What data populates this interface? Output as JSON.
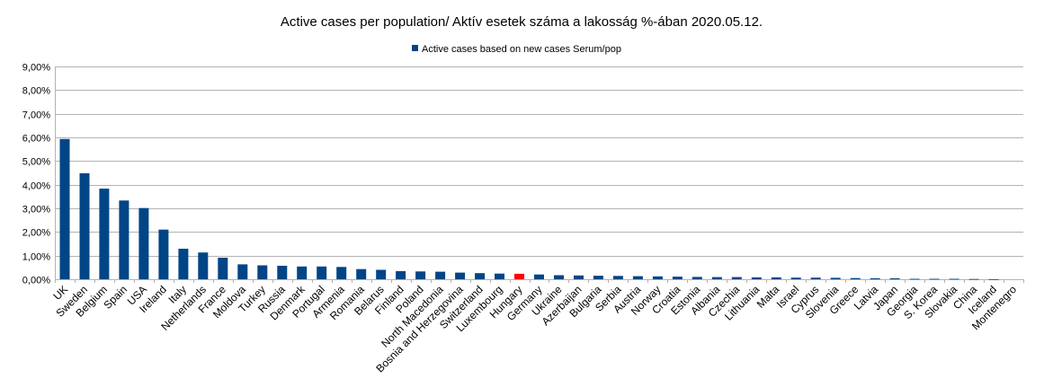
{
  "chart_data": {
    "type": "bar",
    "title": "Active cases per population/ Aktív esetek száma a lakosság %-ában 2020.05.12.",
    "xlabel": "",
    "ylabel": "",
    "legend_position": "top-center",
    "grid": true,
    "ylim": [
      0,
      9
    ],
    "y_ticks": [
      "0,00%",
      "1,00%",
      "2,00%",
      "3,00%",
      "4,00%",
      "5,00%",
      "6,00%",
      "7,00%",
      "8,00%",
      "9,00%"
    ],
    "colors": {
      "series": "#004586",
      "highlight": "#ff0000"
    },
    "highlight_category": "Hungary",
    "categories": [
      "UK",
      "Sweden",
      "Belgium",
      "Spain",
      "USA",
      "Ireland",
      "Italy",
      "Netherlands",
      "France",
      "Moldova",
      "Turkey",
      "Russia",
      "Denmark",
      "Portugal",
      "Armenia",
      "Romania",
      "Belarus",
      "Finland",
      "Poland",
      "North Macedonia",
      "Bosnia and Herzegovina",
      "Switzerland",
      "Luxembourg",
      "Hungary",
      "Germany",
      "Ukraine",
      "Azerbaijan",
      "Bulgaria",
      "Serbia",
      "Austria",
      "Norway",
      "Croatia",
      "Estonia",
      "Albania",
      "Czechia",
      "Lithuania",
      "Malta",
      "Israel",
      "Cyprus",
      "Slovenia",
      "Greece",
      "Latvia",
      "Japan",
      "Georgia",
      "S. Korea",
      "Slovakia",
      "China",
      "Iceland",
      "Montenegro"
    ],
    "series": [
      {
        "name": "Active cases based on new cases Serum/pop",
        "values": [
          5.93,
          4.48,
          3.83,
          3.33,
          3.01,
          2.1,
          1.29,
          1.13,
          0.91,
          0.63,
          0.59,
          0.57,
          0.54,
          0.54,
          0.52,
          0.43,
          0.4,
          0.34,
          0.33,
          0.32,
          0.28,
          0.26,
          0.24,
          0.23,
          0.2,
          0.17,
          0.16,
          0.15,
          0.14,
          0.13,
          0.12,
          0.11,
          0.1,
          0.09,
          0.09,
          0.08,
          0.08,
          0.07,
          0.07,
          0.06,
          0.05,
          0.04,
          0.04,
          0.02,
          0.02,
          0.02,
          0.01,
          0.005,
          0.0
        ]
      }
    ]
  }
}
